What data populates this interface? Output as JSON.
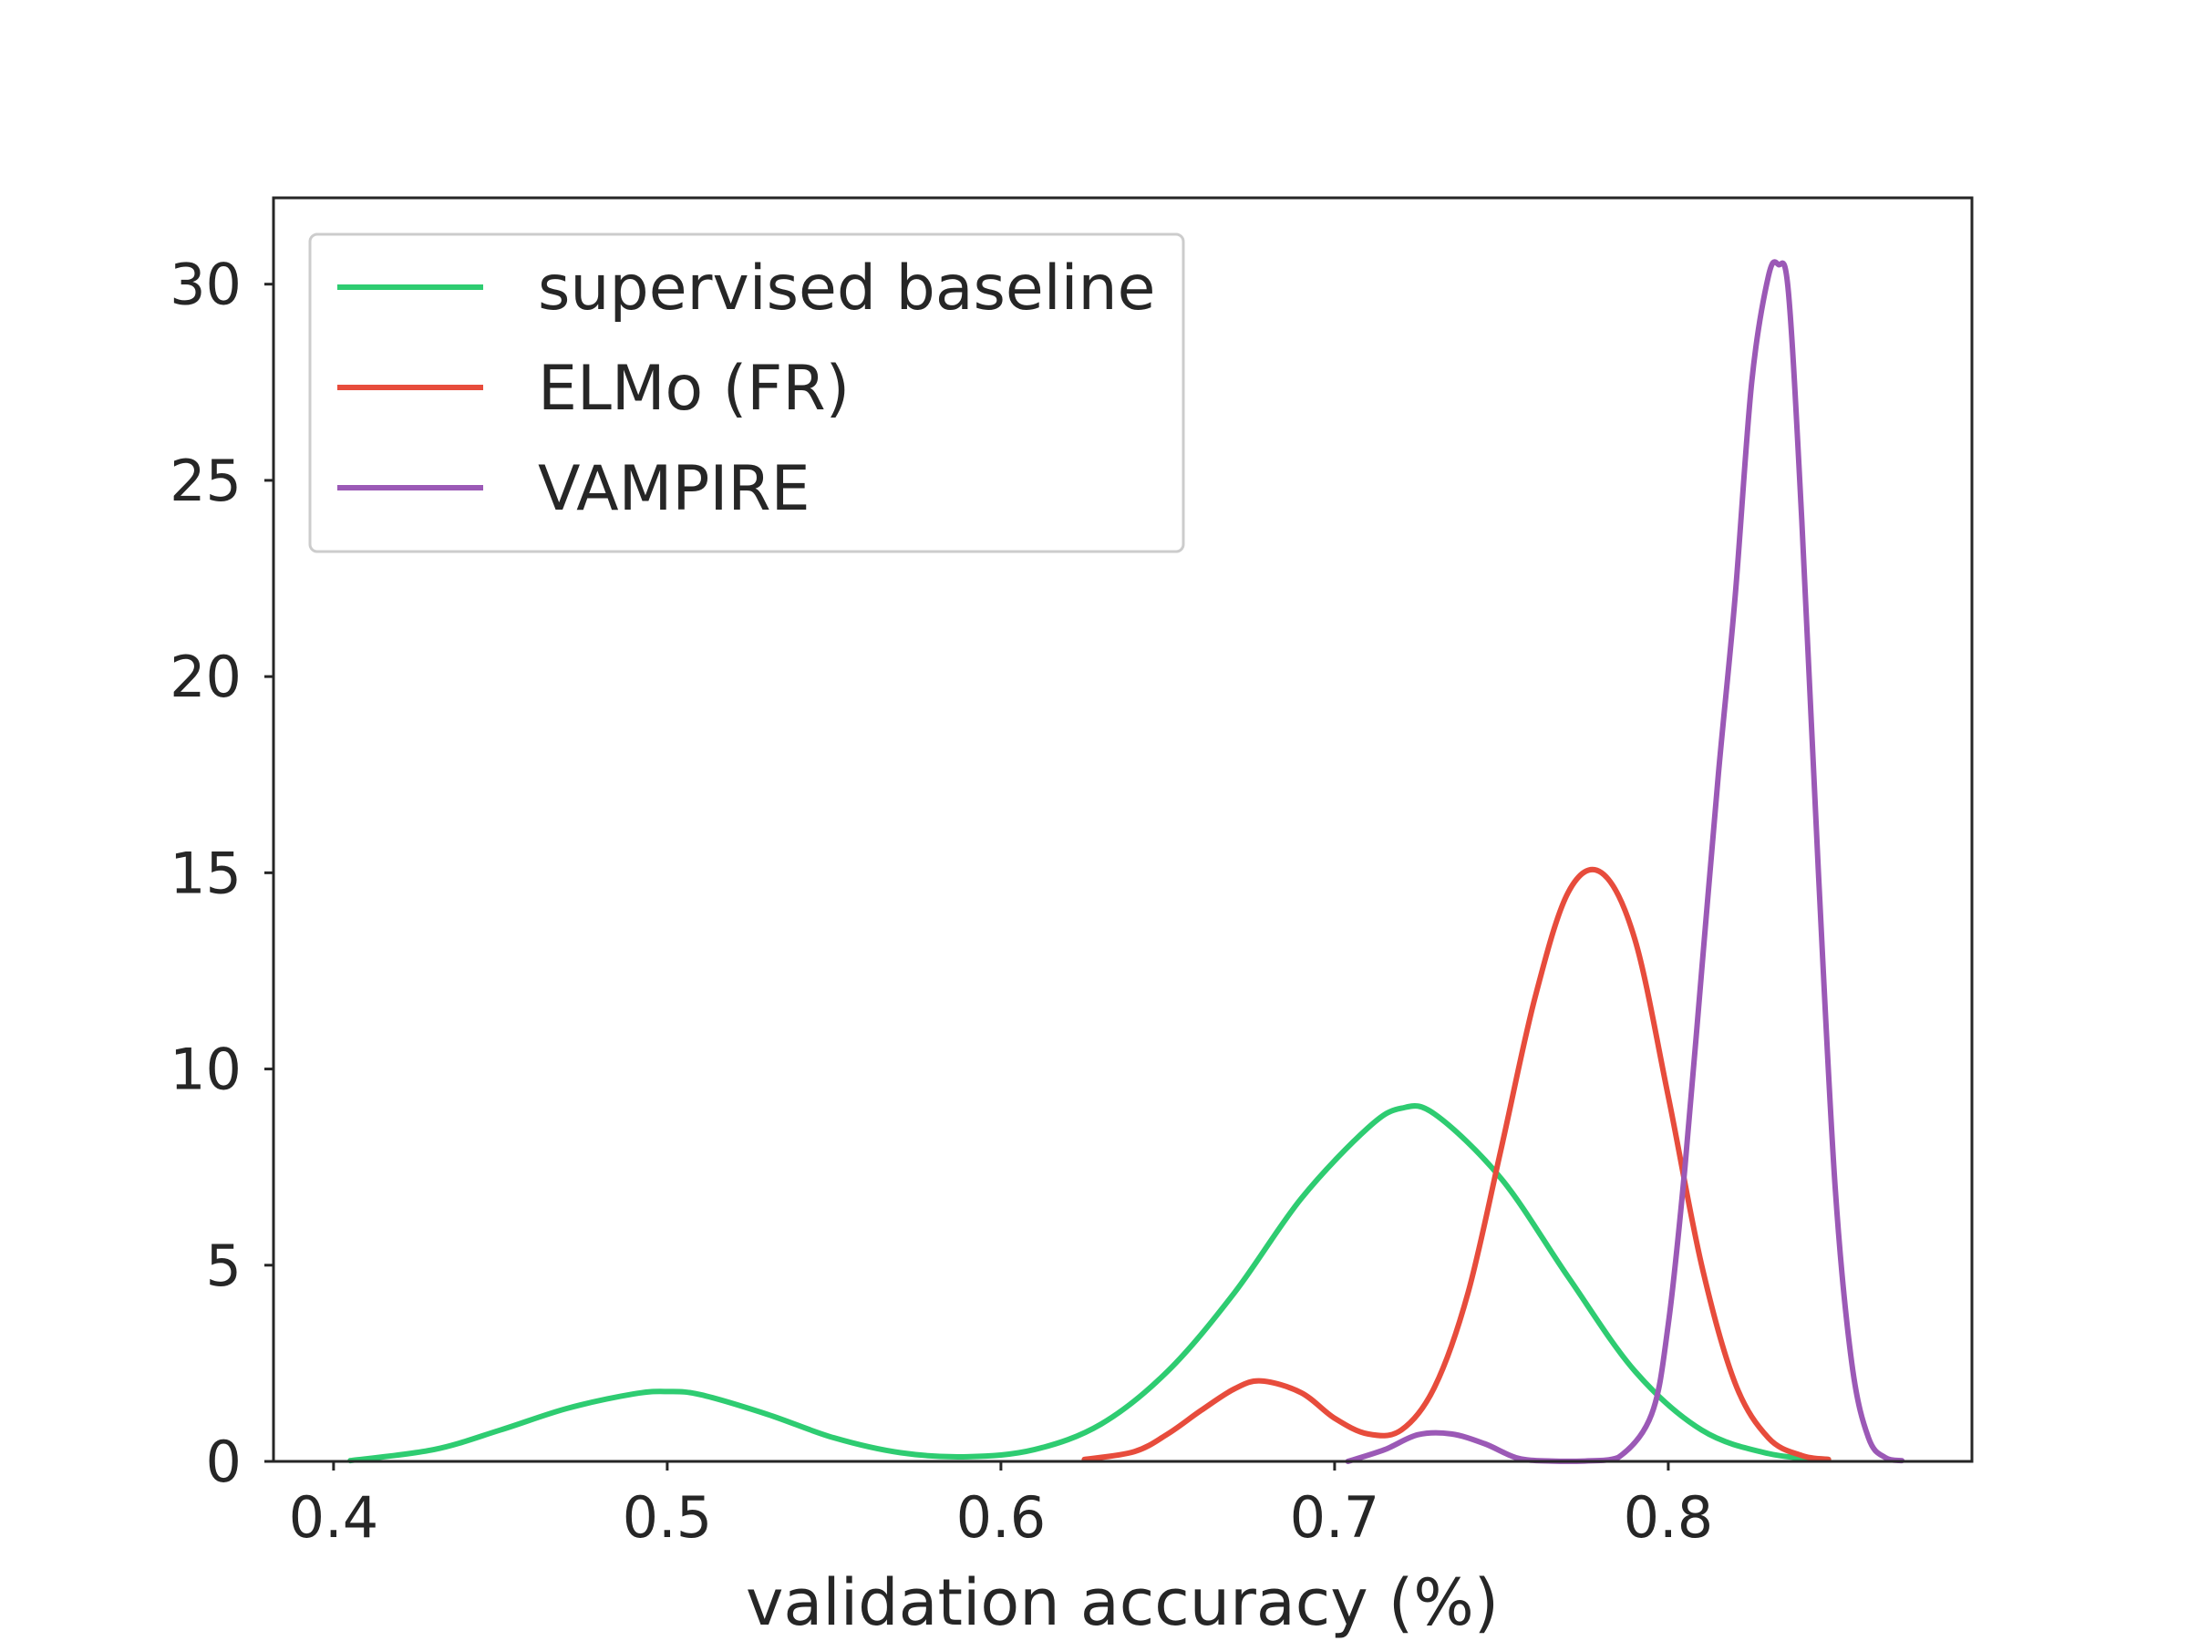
{
  "chart_data": {
    "type": "line",
    "title": "",
    "xlabel": "validation accuracy (%)",
    "ylabel": "",
    "xlim": [
      0.382,
      0.891
    ],
    "ylim": [
      0,
      32.2
    ],
    "xticks": [
      "0.4",
      "0.5",
      "0.6",
      "0.7",
      "0.8"
    ],
    "yticks": [
      "0",
      "5",
      "10",
      "15",
      "20",
      "25",
      "30"
    ],
    "grid": false,
    "legend_position": "top-left",
    "series": [
      {
        "name": "supervised baseline",
        "color": "#2ecc71",
        "x": [
          0.405,
          0.43,
          0.45,
          0.47,
          0.49,
          0.5,
          0.51,
          0.53,
          0.55,
          0.57,
          0.59,
          0.61,
          0.63,
          0.65,
          0.67,
          0.69,
          0.71,
          0.72,
          0.73,
          0.75,
          0.77,
          0.79,
          0.81,
          0.83,
          0.848
        ],
        "y": [
          0.02,
          0.3,
          0.8,
          1.35,
          1.72,
          1.78,
          1.7,
          1.2,
          0.6,
          0.22,
          0.12,
          0.3,
          0.95,
          2.3,
          4.3,
          6.7,
          8.5,
          9.0,
          8.85,
          7.2,
          4.7,
          2.3,
          0.8,
          0.2,
          0.05
        ]
      },
      {
        "name": "ELMo (FR)",
        "color": "#e74c3c",
        "x": [
          0.625,
          0.64,
          0.65,
          0.66,
          0.67,
          0.678,
          0.69,
          0.7,
          0.71,
          0.72,
          0.73,
          0.74,
          0.75,
          0.76,
          0.77,
          0.78,
          0.79,
          0.8,
          0.81,
          0.82,
          0.83,
          0.84,
          0.848
        ],
        "y": [
          0.05,
          0.25,
          0.7,
          1.3,
          1.85,
          2.05,
          1.75,
          1.1,
          0.7,
          0.8,
          1.9,
          4.3,
          8.0,
          11.8,
          14.5,
          15.0,
          13.3,
          9.3,
          5.0,
          2.0,
          0.6,
          0.15,
          0.05
        ]
      },
      {
        "name": "VAMPIRE",
        "color": "#9b59b6",
        "x": [
          0.704,
          0.715,
          0.725,
          0.735,
          0.745,
          0.755,
          0.765,
          0.775,
          0.785,
          0.795,
          0.8,
          0.805,
          0.81,
          0.815,
          0.82,
          0.825,
          0.83,
          0.833,
          0.836,
          0.84,
          0.845,
          0.85,
          0.855,
          0.86,
          0.865,
          0.87
        ],
        "y": [
          0.0,
          0.3,
          0.68,
          0.7,
          0.45,
          0.08,
          0.01,
          0.01,
          0.1,
          1.2,
          3.5,
          7.5,
          12.5,
          17.5,
          22.0,
          27.5,
          30.2,
          30.5,
          29.8,
          24.0,
          15.0,
          7.0,
          2.5,
          0.6,
          0.1,
          0.02
        ]
      }
    ]
  }
}
